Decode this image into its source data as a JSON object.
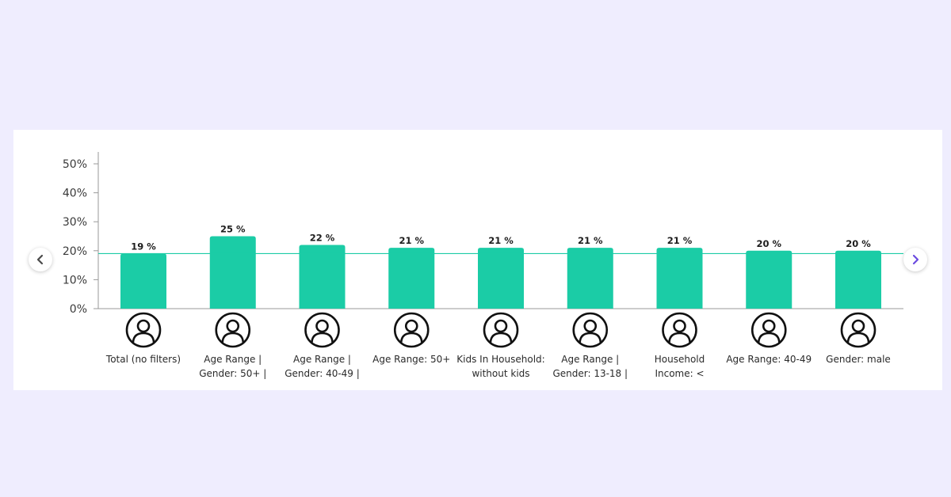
{
  "colors": {
    "background": "#efedfe",
    "card": "#ffffff",
    "bar": "#1bcca6",
    "reference_line": "#1bcca6",
    "axis": "#999999",
    "nav_arrow_left": "#4a4a4a",
    "nav_arrow_right": "#6b4be0"
  },
  "navigation": {
    "prev_icon": "chevron-left-icon",
    "next_icon": "chevron-right-icon"
  },
  "chart_data": {
    "type": "bar",
    "title": "",
    "xlabel": "",
    "ylabel": "",
    "ylim": [
      0,
      50
    ],
    "yticks": [
      0,
      10,
      20,
      30,
      40,
      50
    ],
    "ytick_labels": [
      "0%",
      "10%",
      "20%",
      "30%",
      "40%",
      "50%"
    ],
    "reference_line": 19,
    "grid": false,
    "legend": "none",
    "category_icon": "user-icon",
    "categories": [
      [
        "Total (no filters)"
      ],
      [
        "Age Range |",
        "Gender: 50+ |"
      ],
      [
        "Age Range |",
        "Gender: 40-49 |"
      ],
      [
        "Age Range: 50+"
      ],
      [
        "Kids In Household:",
        "without kids"
      ],
      [
        "Age Range |",
        "Gender: 13-18 |"
      ],
      [
        "Household",
        "Income: <"
      ],
      [
        "Age Range: 40-49"
      ],
      [
        "Gender: male"
      ]
    ],
    "values": [
      19,
      25,
      22,
      21,
      21,
      21,
      21,
      20,
      20
    ],
    "value_labels": [
      "19 %",
      "25 %",
      "22 %",
      "21 %",
      "21 %",
      "21 %",
      "21 %",
      "20 %",
      "20 %"
    ]
  }
}
